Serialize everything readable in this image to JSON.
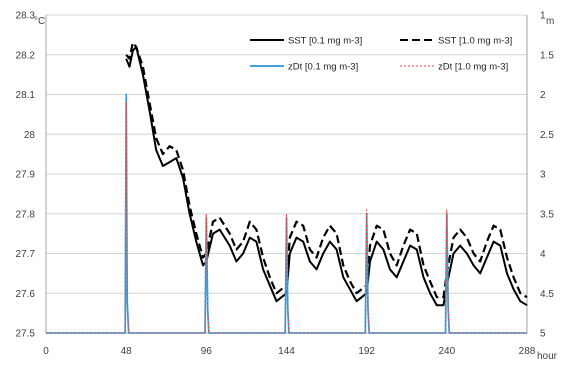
{
  "chart_data": {
    "type": "line",
    "xlabel": "hour",
    "ylabel": "°C",
    "y2label": "m",
    "xlim": [
      0,
      288
    ],
    "x_ticks": [
      0,
      48,
      96,
      144,
      192,
      240,
      288
    ],
    "ylim": [
      27.5,
      28.3
    ],
    "y_ticks": [
      27.5,
      27.6,
      27.7,
      27.8,
      27.9,
      28,
      28.1,
      28.2,
      28.3
    ],
    "y2lim": [
      1,
      5
    ],
    "y2_inverted": true,
    "y2_ticks": [
      1,
      1.5,
      2,
      2.5,
      3,
      3.5,
      4,
      4.5,
      5
    ],
    "grid": "horizontal",
    "legend": "top-right",
    "series": [
      {
        "name": "SST [0.1 mg m-3]",
        "axis": "left",
        "color": "#000000",
        "style": "solid",
        "x": [
          48,
          50,
          52,
          54,
          58,
          62,
          66,
          70,
          74,
          78,
          82,
          86,
          90,
          94,
          96,
          100,
          104,
          110,
          114,
          118,
          122,
          126,
          130,
          134,
          138,
          144,
          146,
          150,
          154,
          158,
          162,
          166,
          170,
          174,
          178,
          182,
          186,
          192,
          194,
          198,
          202,
          206,
          210,
          214,
          218,
          222,
          226,
          230,
          234,
          238,
          240,
          244,
          248,
          252,
          256,
          260,
          264,
          268,
          272,
          276,
          280,
          284,
          288
        ],
        "values": [
          28.19,
          28.17,
          28.21,
          28.22,
          28.15,
          28.06,
          27.96,
          27.92,
          27.93,
          27.94,
          27.89,
          27.8,
          27.73,
          27.67,
          27.68,
          27.75,
          27.76,
          27.72,
          27.68,
          27.7,
          27.74,
          27.73,
          27.66,
          27.62,
          27.58,
          27.6,
          27.7,
          27.74,
          27.73,
          27.68,
          27.66,
          27.7,
          27.73,
          27.71,
          27.64,
          27.61,
          27.58,
          27.6,
          27.68,
          27.73,
          27.71,
          27.66,
          27.64,
          27.68,
          27.72,
          27.71,
          27.64,
          27.6,
          27.57,
          27.57,
          27.62,
          27.7,
          27.72,
          27.7,
          27.67,
          27.65,
          27.69,
          27.73,
          27.72,
          27.65,
          27.61,
          27.58,
          27.57
        ]
      },
      {
        "name": "SST [1.0 mg m-3]",
        "axis": "left",
        "color": "#000000",
        "style": "dashed",
        "x": [
          48,
          50,
          52,
          54,
          58,
          62,
          66,
          70,
          74,
          78,
          82,
          86,
          90,
          94,
          96,
          100,
          104,
          110,
          114,
          118,
          122,
          126,
          130,
          134,
          138,
          144,
          146,
          150,
          154,
          158,
          162,
          166,
          170,
          174,
          178,
          182,
          186,
          192,
          194,
          198,
          202,
          206,
          210,
          214,
          218,
          222,
          226,
          230,
          234,
          238,
          240,
          244,
          248,
          252,
          256,
          260,
          264,
          268,
          272,
          276,
          280,
          284,
          288
        ],
        "values": [
          28.2,
          28.19,
          28.23,
          28.22,
          28.17,
          28.08,
          27.99,
          27.95,
          27.97,
          27.96,
          27.91,
          27.82,
          27.75,
          27.69,
          27.7,
          27.78,
          27.79,
          27.75,
          27.71,
          27.73,
          27.78,
          27.76,
          27.69,
          27.64,
          27.6,
          27.62,
          27.74,
          27.78,
          27.77,
          27.71,
          27.69,
          27.74,
          27.77,
          27.75,
          27.67,
          27.63,
          27.6,
          27.62,
          27.72,
          27.77,
          27.76,
          27.7,
          27.67,
          27.72,
          27.76,
          27.75,
          27.67,
          27.63,
          27.59,
          27.59,
          27.65,
          27.74,
          27.76,
          27.74,
          27.7,
          27.68,
          27.73,
          27.77,
          27.76,
          27.69,
          27.64,
          27.6,
          27.59
        ]
      },
      {
        "name": "zDt [0.1 mg m-3]",
        "axis": "right",
        "color": "#41a4dc",
        "style": "solid",
        "x": [
          0,
          47.4,
          48,
          48.6,
          49.5,
          95.2,
          96,
          96.8,
          97.5,
          143.2,
          144,
          144.8,
          145.5,
          191.2,
          192,
          192.8,
          193.5,
          239.2,
          240,
          240.8,
          241.5,
          288
        ],
        "values": [
          5,
          5,
          2,
          4.6,
          5,
          5,
          3.55,
          4.7,
          5,
          5,
          3.55,
          4.7,
          5,
          5,
          3.5,
          4.7,
          5,
          5,
          3.5,
          4.7,
          5,
          5
        ]
      },
      {
        "name": "zDt [1.0 mg m-3]",
        "axis": "right",
        "color": "#e8453c",
        "style": "dotted",
        "x": [
          0,
          47.4,
          48,
          48.6,
          49.5,
          95.2,
          96,
          96.8,
          97.5,
          143.2,
          144,
          144.8,
          145.5,
          191.2,
          192,
          192.8,
          193.5,
          239.2,
          240,
          240.8,
          241.5,
          288
        ],
        "values": [
          5,
          5,
          2.1,
          4.6,
          5,
          5,
          3.5,
          4.7,
          5,
          5,
          3.5,
          4.7,
          5,
          5,
          3.45,
          4.7,
          5,
          5,
          3.45,
          4.7,
          5,
          5
        ]
      }
    ]
  }
}
